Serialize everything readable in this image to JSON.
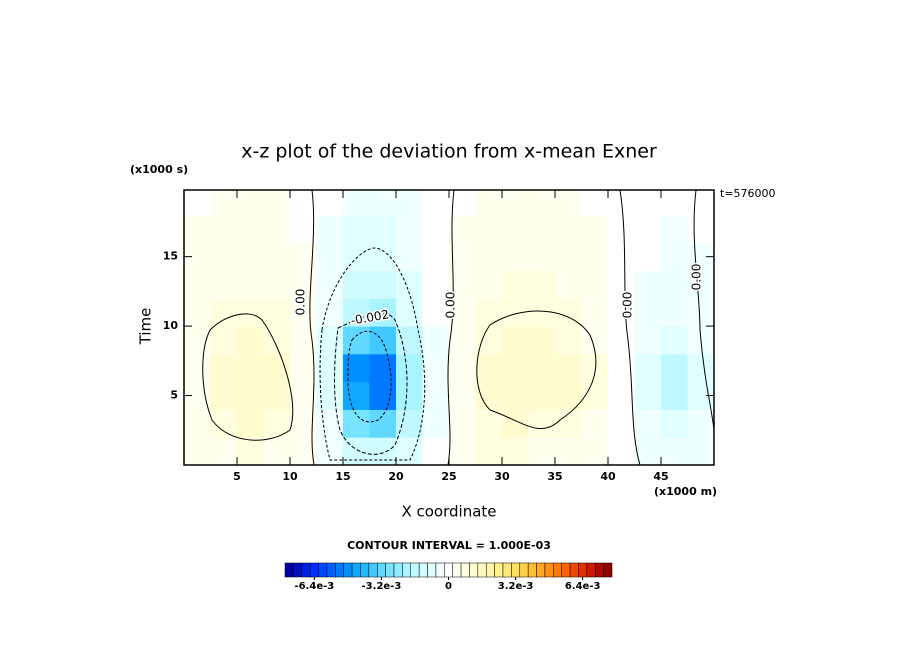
{
  "chart_data": {
    "type": "contour",
    "title": "x-z plot of the deviation from x-mean Exner",
    "x_label": "X coordinate",
    "y_label": "Time",
    "x_unit_label": "(x1000 m)",
    "y_unit_label": "(x1000 s)",
    "annotation": "t=576000",
    "contour_interval_label": "CONTOUR INTERVAL = 1.000E-03",
    "contour_labels": [
      "0.00",
      "0.00",
      "0.00",
      "0.00",
      "-0.002"
    ],
    "xlim": [
      0,
      50
    ],
    "xticks": [
      5,
      10,
      15,
      20,
      25,
      30,
      35,
      40,
      45
    ],
    "ylim": [
      0,
      19.8
    ],
    "yticks": [
      5,
      10,
      15
    ],
    "x": [
      1.25,
      3.75,
      6.25,
      8.75,
      11.25,
      13.75,
      16.25,
      18.75,
      21.25,
      23.75,
      26.25,
      28.75,
      31.25,
      33.75,
      36.25,
      38.75,
      41.25,
      43.75,
      46.25,
      48.75
    ],
    "y": [
      1,
      3,
      5,
      7,
      9,
      11,
      13,
      15,
      17,
      19
    ],
    "z": [
      [
        0.0003,
        0.0005,
        0.0006,
        0.0005,
        0.0003,
        -0.0003,
        -0.0012,
        -0.0014,
        -0.0008,
        -0.0002,
        0.0003,
        0.0006,
        0.0006,
        0.0005,
        0.0005,
        0.0003,
        -0.0001,
        -0.0004,
        -0.0006,
        -0.0004
      ],
      [
        0.0004,
        0.0008,
        0.001,
        0.0008,
        0.0004,
        -0.0005,
        -0.003,
        -0.0032,
        -0.0015,
        -0.0003,
        0.0004,
        0.0008,
        0.001,
        0.0009,
        0.0008,
        0.0005,
        -0.0001,
        -0.0006,
        -0.001,
        -0.0006
      ],
      [
        0.0005,
        0.001,
        0.0012,
        0.001,
        0.0005,
        -0.0008,
        -0.0045,
        -0.005,
        -0.002,
        -0.0004,
        0.0005,
        0.001,
        0.0012,
        0.0012,
        0.001,
        0.0006,
        -0.0001,
        -0.0008,
        -0.0016,
        -0.0008
      ],
      [
        0.0005,
        0.001,
        0.0012,
        0.001,
        0.0005,
        -0.0008,
        -0.0048,
        -0.0052,
        -0.002,
        -0.0004,
        0.0005,
        0.001,
        0.0013,
        0.0013,
        0.0011,
        0.0006,
        -0.0001,
        -0.0008,
        -0.0015,
        -0.0008
      ],
      [
        0.0005,
        0.0009,
        0.0011,
        0.0009,
        0.0004,
        -0.0007,
        -0.0032,
        -0.0035,
        -0.0016,
        -0.0003,
        0.0005,
        0.0009,
        0.0011,
        0.0011,
        0.0009,
        0.0005,
        -0.0001,
        -0.0006,
        -0.001,
        -0.0006
      ],
      [
        0.0004,
        0.0007,
        0.0008,
        0.0006,
        0.0003,
        -0.0005,
        -0.0018,
        -0.002,
        -0.001,
        -0.0002,
        0.0004,
        0.0007,
        0.0008,
        0.0008,
        0.0007,
        0.0004,
        -0.0001,
        -0.0004,
        -0.0006,
        -0.0004
      ],
      [
        0.0003,
        0.0005,
        0.0005,
        0.0004,
        0.0002,
        -0.0004,
        -0.0012,
        -0.0013,
        -0.0007,
        -0.0002,
        0.0003,
        0.0005,
        0.0006,
        0.0006,
        0.0005,
        0.0003,
        0,
        -0.0003,
        -0.0004,
        -0.0003
      ],
      [
        0.0002,
        0.0003,
        0.0003,
        0.0003,
        0.0002,
        -0.0003,
        -0.0009,
        -0.001,
        -0.0005,
        -0.0001,
        0.0002,
        0.0004,
        0.0005,
        0.0005,
        0.0004,
        0.0002,
        0,
        -0.0002,
        -0.0003,
        -0.0003
      ],
      [
        0.0002,
        0.0002,
        0.0002,
        0.0002,
        0.0001,
        -0.0003,
        -0.0007,
        -0.0007,
        -0.0004,
        -0.0001,
        0.0002,
        0.0003,
        0.0004,
        0.0004,
        0.0003,
        0.0002,
        0,
        -0.0002,
        -0.0003,
        -0.0002
      ],
      [
        0.0001,
        0.0002,
        0.0002,
        0.0002,
        0.0001,
        -0.0002,
        -0.0005,
        -0.0005,
        -0.0003,
        -0.0001,
        0.0001,
        0.0002,
        0.0003,
        0.0003,
        0.0002,
        0.0001,
        0,
        -0.0002,
        -0.0002,
        -0.0002
      ]
    ],
    "clim": [
      -0.0078,
      0.0078
    ],
    "colors": [
      "#0000a0",
      "#0010c0",
      "#0020e0",
      "#0030ff",
      "#0048ff",
      "#0060ff",
      "#0078ff",
      "#0090ff",
      "#10a8ff",
      "#20b8ff",
      "#40c8ff",
      "#60d8ff",
      "#78e4ff",
      "#90ecff",
      "#a8f4ff",
      "#c0f8ff",
      "#d0fcff",
      "#e0ffff",
      "#f0ffff",
      "#ffffff",
      "#fffff0",
      "#ffffe0",
      "#fffcd0",
      "#fff8c0",
      "#fff4a8",
      "#fff090",
      "#ffe878",
      "#ffe060",
      "#ffd048",
      "#ffc030",
      "#ffa820",
      "#ff9010",
      "#ff7800",
      "#ff6000",
      "#f04800",
      "#e03000",
      "#d01800",
      "#b00800",
      "#900000"
    ],
    "cticks": [
      {
        "value": -0.0064,
        "label": "-6.4e-3"
      },
      {
        "value": -0.0032,
        "label": "-3.2e-3"
      },
      0,
      {
        "value": 0.0032,
        "label": "3.2e-3"
      },
      {
        "value": 0.0064,
        "label": "6.4e-3"
      }
    ]
  }
}
